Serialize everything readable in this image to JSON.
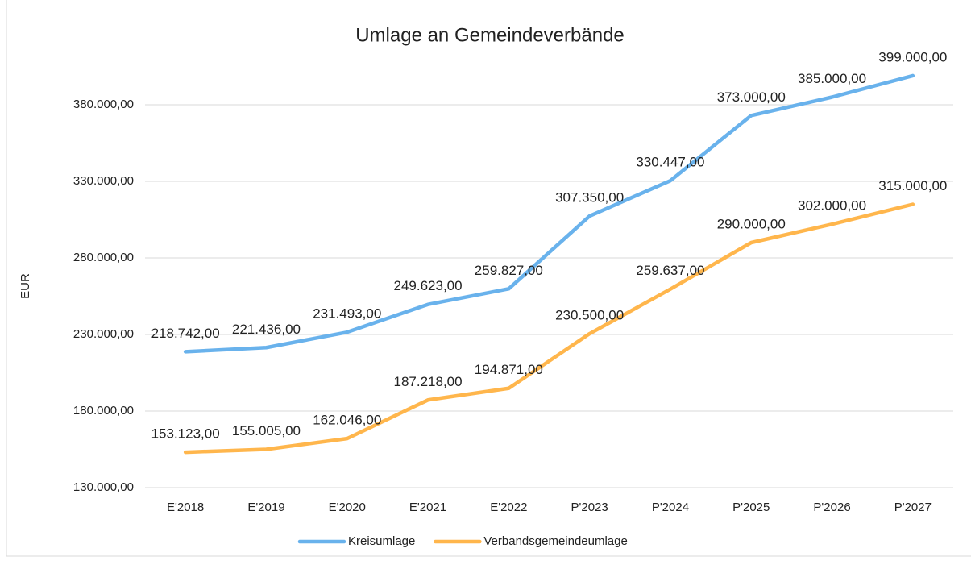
{
  "chart_data": {
    "type": "line",
    "title": "Umlage an Gemeindeverbände",
    "y_label": "EUR",
    "categories": [
      "E'2018",
      "E'2019",
      "E'2020",
      "E'2021",
      "E'2022",
      "P'2023",
      "P'2024",
      "P'2025",
      "P'2026",
      "P'2027"
    ],
    "series": [
      {
        "name": "Kreisumlage",
        "color": "#69b2ec",
        "values": [
          218742,
          221436,
          231493,
          249623,
          259827,
          307350,
          330447,
          373000,
          385000,
          399000
        ],
        "value_labels": [
          "218.742,00",
          "221.436,00",
          "231.493,00",
          "249.623,00",
          "259.827,00",
          "307.350,00",
          "330.447,00",
          "373.000,00",
          "385.000,00",
          "399.000,00"
        ]
      },
      {
        "name": "Verbandsgemeindeumlage",
        "color": "#ffb64c",
        "values": [
          153123,
          155005,
          162046,
          187218,
          194871,
          230500,
          259637,
          290000,
          302000,
          315000
        ],
        "value_labels": [
          "153.123,00",
          "155.005,00",
          "162.046,00",
          "187.218,00",
          "194.871,00",
          "230.500,00",
          "259.637,00",
          "290.000,00",
          "302.000,00",
          "315.000,00"
        ]
      }
    ],
    "ylim": [
      130000,
      400000
    ],
    "yticks": [
      {
        "value": 130000,
        "label": "130.000,00"
      },
      {
        "value": 180000,
        "label": "180.000,00"
      },
      {
        "value": 230000,
        "label": "230.000,00"
      },
      {
        "value": 280000,
        "label": "280.000,00"
      },
      {
        "value": 330000,
        "label": "330.000,00"
      },
      {
        "value": 380000,
        "label": "380.000,00"
      }
    ],
    "grid": true,
    "legend": "bottom"
  }
}
